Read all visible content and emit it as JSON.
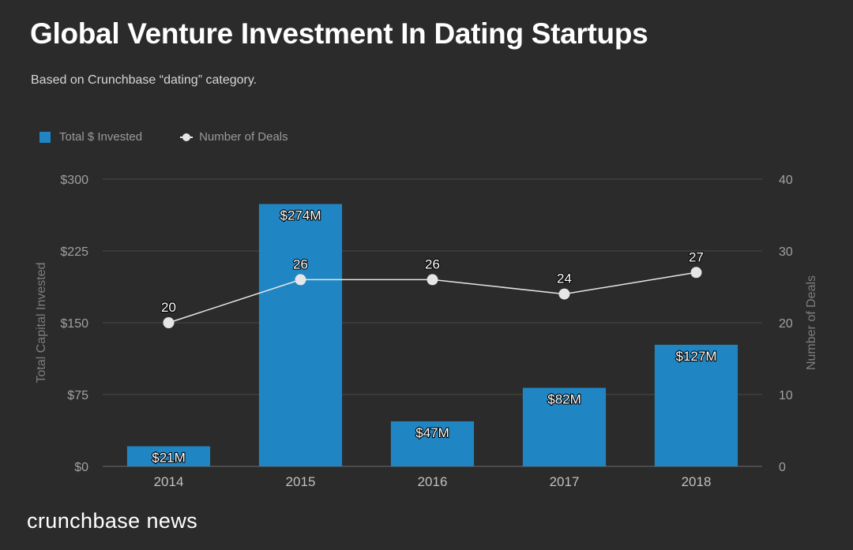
{
  "title": "Global Venture Investment In Dating Startups",
  "subtitle": "Based on Crunchbase “dating” category.",
  "brand": "crunchbase news",
  "colors": {
    "background": "#2b2b2b",
    "bar": "#1f86c3",
    "line": "#e6e6e6",
    "grid": "#4a4a4a"
  },
  "chart_data": {
    "type": "bar",
    "title": "Global Venture Investment In Dating Startups",
    "categories": [
      "2014",
      "2015",
      "2016",
      "2017",
      "2018"
    ],
    "series": [
      {
        "name": "Total $ Invested",
        "type": "bar",
        "axis": "left",
        "values": [
          21,
          274,
          47,
          82,
          127
        ],
        "labels": [
          "$21M",
          "$274M",
          "$47M",
          "$82M",
          "$127M"
        ]
      },
      {
        "name": "Number of Deals",
        "type": "line",
        "axis": "right",
        "values": [
          20,
          26,
          26,
          24,
          27
        ],
        "labels": [
          "20",
          "26",
          "26",
          "24",
          "27"
        ]
      }
    ],
    "ylabel": "Total Capital Invested",
    "y2label": "Number of Deals",
    "ylim": [
      0,
      300
    ],
    "y2lim": [
      0,
      40
    ],
    "yticks": [
      "$0",
      "$75",
      "$150",
      "$225",
      "$300"
    ],
    "y2ticks": [
      "0",
      "10",
      "20",
      "30",
      "40"
    ],
    "legend_position": "top-left",
    "grid": true
  }
}
